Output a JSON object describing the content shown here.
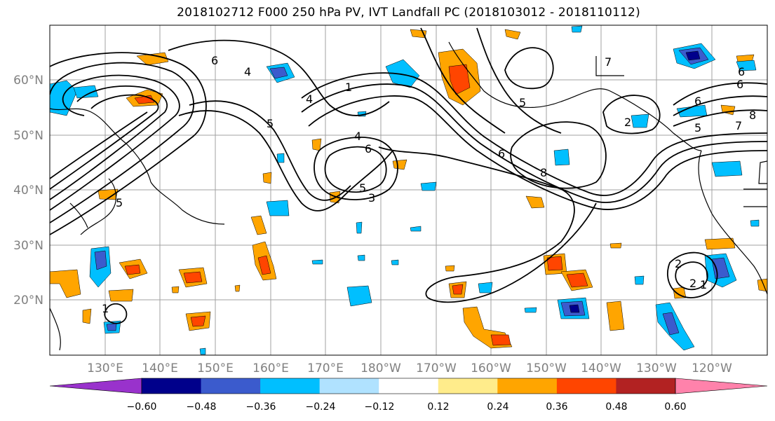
{
  "title": "2018102712 F000 250 hPa PV, IVT Landfall PC (2018103012 - 2018110112)",
  "map": {
    "lat_labels": [
      "60°N",
      "50°N",
      "40°N",
      "30°N",
      "20°N"
    ],
    "lon_labels": [
      "130°E",
      "140°E",
      "150°E",
      "160°E",
      "170°E",
      "180°W",
      "170°W",
      "160°W",
      "150°W",
      "140°W",
      "130°W",
      "120°W"
    ],
    "contour_labels": [
      "6",
      "4",
      "6",
      "4",
      "1",
      "5",
      "4",
      "6",
      "5",
      "3",
      "6",
      "8",
      "5",
      "2",
      "5",
      "7",
      "6",
      "5",
      "6",
      "8",
      "7",
      "1",
      "2",
      "2",
      "1"
    ]
  },
  "colorbar": {
    "tick_labels": [
      "−0.60",
      "−0.48",
      "−0.36",
      "−0.24",
      "−0.12",
      "0.12",
      "0.24",
      "0.36",
      "0.48",
      "0.60"
    ],
    "colors": [
      "#9932cc",
      "#00008b",
      "#3b5bcd",
      "#00bfff",
      "#b0e2ff",
      "#ffffff",
      "#ffec8b",
      "#ffa500",
      "#ff4500",
      "#b22222",
      "#ff82ab"
    ]
  }
}
